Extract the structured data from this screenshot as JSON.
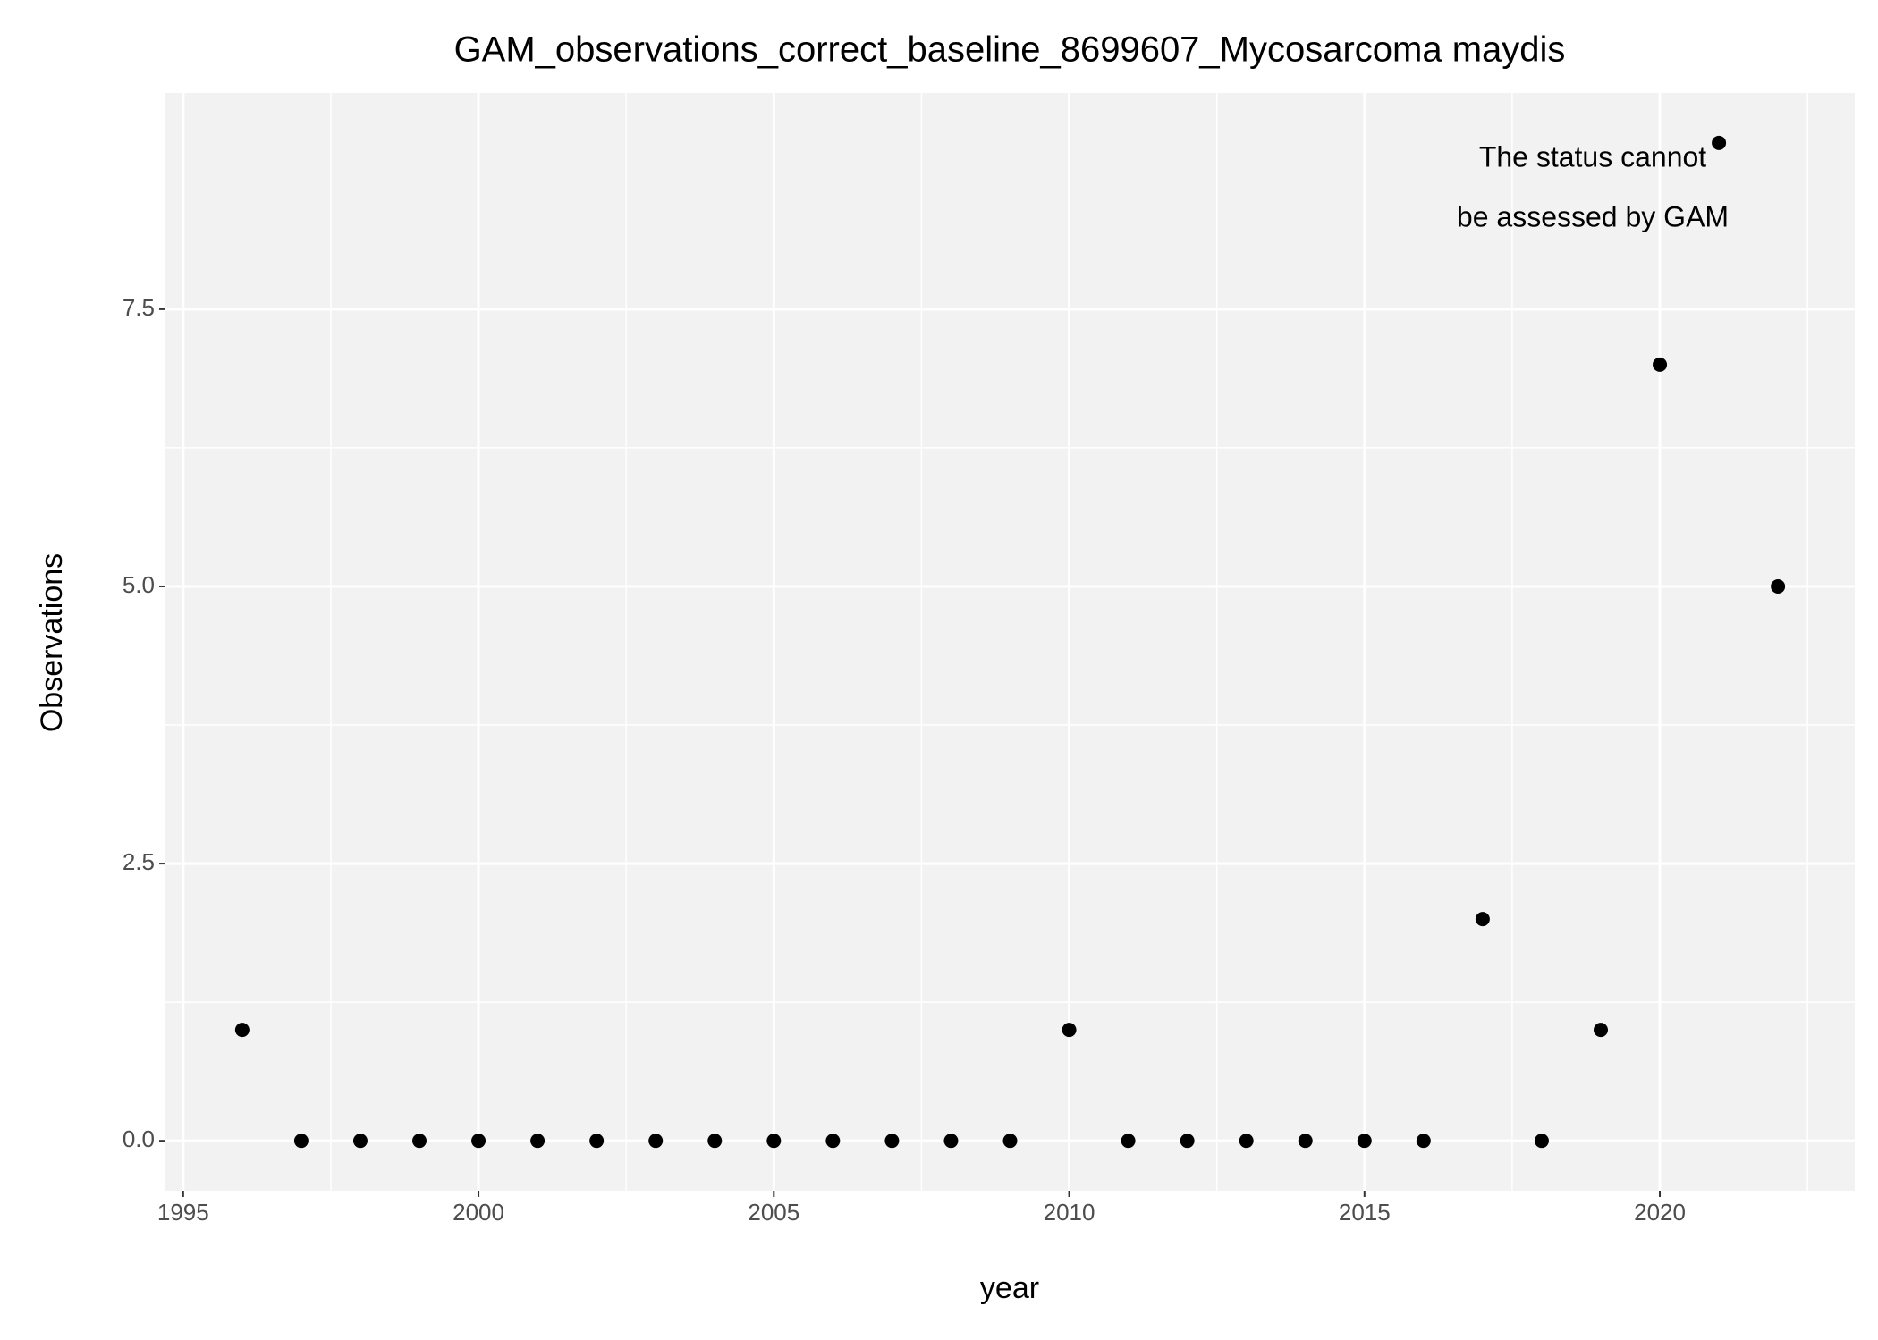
{
  "chart_data": {
    "type": "scatter",
    "title": "GAM_observations_correct_baseline_8699607_Mycosarcoma maydis",
    "x_label": "year",
    "y_label": "Observations",
    "annotation": [
      "The status cannot",
      "be assessed by GAM"
    ],
    "annotation_color": "#ff0000",
    "x": [
      1996,
      1997,
      1998,
      1999,
      2000,
      2001,
      2002,
      2003,
      2004,
      2005,
      2006,
      2007,
      2008,
      2009,
      2010,
      2011,
      2012,
      2013,
      2014,
      2015,
      2016,
      2017,
      2018,
      2019,
      2020,
      2021,
      2022
    ],
    "values": [
      1,
      0,
      0,
      0,
      0,
      0,
      0,
      0,
      0,
      0,
      0,
      0,
      0,
      0,
      1,
      0,
      0,
      0,
      0,
      0,
      0,
      2,
      0,
      1,
      7,
      9,
      5
    ],
    "color": "#000000",
    "xlim": [
      1994.7,
      2023.3
    ],
    "xticks": [
      1995,
      2000,
      2005,
      2010,
      2015,
      2020
    ],
    "ylim": [
      -0.45,
      9.45
    ],
    "yticks": [
      {
        "value": 0,
        "label": "0.0"
      },
      {
        "value": 2.5,
        "label": "2.5"
      },
      {
        "value": 5,
        "label": "5.0"
      },
      {
        "value": 7.5,
        "label": "7.5"
      }
    ],
    "grid": true
  }
}
